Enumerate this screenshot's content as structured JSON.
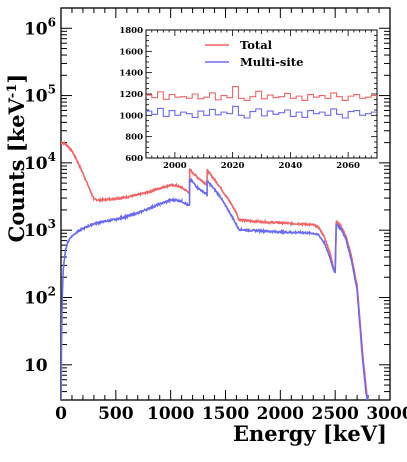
{
  "chart_data": {
    "main": {
      "type": "line",
      "xlabel": "Energy [keV]",
      "ylabel": "Counts [keV",
      "ylabel_sup": "-1",
      "ylabel_close": "]",
      "xlim": [
        0,
        3000
      ],
      "ylim": [
        3,
        2000000
      ],
      "yscale": "log",
      "x_ticks": [
        "0",
        "500",
        "1000",
        "1500",
        "2000",
        "2500",
        "3000"
      ],
      "y_ticks": [
        {
          "value": 10,
          "base": "10",
          "exp": ""
        },
        {
          "value": 100,
          "base": "10",
          "exp": "2"
        },
        {
          "value": 1000,
          "base": "10",
          "exp": "3"
        },
        {
          "value": 10000,
          "base": "10",
          "exp": "4"
        },
        {
          "value": 100000,
          "base": "10",
          "exp": "5"
        },
        {
          "value": 1000000,
          "base": "10",
          "exp": "6"
        }
      ],
      "series": [
        {
          "name": "Total",
          "color": "#f06466",
          "x": [
            0,
            30,
            60,
            100,
            150,
            200,
            250,
            300,
            350,
            400,
            500,
            600,
            700,
            800,
            900,
            1000,
            1050,
            1100,
            1150,
            1160,
            1172,
            1173,
            1200,
            1250,
            1300,
            1330,
            1332,
            1333,
            1380,
            1450,
            1500,
            1550,
            1600,
            1620,
            1700,
            1800,
            1900,
            2000,
            2100,
            2200,
            2300,
            2350,
            2400,
            2450,
            2480,
            2500,
            2510,
            2530,
            2560,
            2600,
            2650,
            2700,
            2720,
            2750,
            2780,
            2790,
            2800
          ],
          "y": [
            20000,
            19500,
            18000,
            15000,
            10500,
            7000,
            4500,
            2900,
            2800,
            2850,
            2950,
            3100,
            3350,
            3700,
            4200,
            4700,
            4600,
            4300,
            3800,
            3700,
            3600,
            8000,
            7200,
            6000,
            5200,
            4800,
            4500,
            7800,
            6200,
            4400,
            3300,
            2500,
            1800,
            1450,
            1380,
            1340,
            1310,
            1290,
            1260,
            1240,
            1200,
            1100,
            800,
            480,
            300,
            250,
            1350,
            1250,
            1100,
            800,
            400,
            150,
            60,
            15,
            5,
            3.5,
            3
          ]
        },
        {
          "name": "Multi-site",
          "color": "#6a6af2",
          "x": [
            0,
            5,
            10,
            20,
            40,
            60,
            80,
            100,
            150,
            200,
            250,
            300,
            350,
            400,
            500,
            600,
            700,
            800,
            900,
            1000,
            1050,
            1100,
            1150,
            1160,
            1172,
            1173,
            1200,
            1250,
            1300,
            1330,
            1332,
            1333,
            1380,
            1450,
            1500,
            1550,
            1600,
            1620,
            1700,
            1800,
            1900,
            2000,
            2100,
            2200,
            2300,
            2350,
            2400,
            2450,
            2480,
            2500,
            2510,
            2530,
            2560,
            2600,
            2650,
            2700,
            2720,
            2750,
            2780,
            2790,
            2800
          ],
          "y": [
            3,
            20,
            80,
            250,
            500,
            650,
            750,
            820,
            950,
            1050,
            1150,
            1250,
            1300,
            1350,
            1450,
            1600,
            1800,
            2100,
            2450,
            2800,
            2800,
            2700,
            2400,
            2350,
            2300,
            5800,
            5200,
            4200,
            3700,
            3400,
            3200,
            5400,
            4400,
            3200,
            2300,
            1700,
            1200,
            1030,
            1000,
            980,
            960,
            940,
            930,
            920,
            900,
            850,
            650,
            400,
            280,
            230,
            1250,
            1150,
            1000,
            720,
            350,
            130,
            50,
            12,
            4,
            3.2,
            3
          ]
        }
      ]
    },
    "inset": {
      "type": "line",
      "xlim": [
        1990,
        2070
      ],
      "ylim": [
        600,
        1800
      ],
      "x_ticks": [
        "2000",
        "2020",
        "2040",
        "2060"
      ],
      "y_ticks": [
        "600",
        "800",
        "1000",
        "1200",
        "1400",
        "1600",
        "1800"
      ],
      "legend": {
        "position": "top-right",
        "entries": [
          "Total",
          "Multi-site"
        ]
      },
      "series": [
        {
          "name": "Total",
          "color": "#f06466",
          "bin_start": 1990,
          "bin_width": 2,
          "values": [
            1190,
            1165,
            1220,
            1150,
            1195,
            1170,
            1175,
            1160,
            1200,
            1155,
            1170,
            1210,
            1145,
            1185,
            1165,
            1270,
            1160,
            1140,
            1175,
            1225,
            1155,
            1190,
            1165,
            1175,
            1205,
            1160,
            1180,
            1140,
            1195,
            1170,
            1185,
            1160,
            1210,
            1175,
            1140,
            1180,
            1195,
            1160,
            1170,
            1185
          ]
        },
        {
          "name": "Multi-site",
          "color": "#6a6af2",
          "bin_start": 1990,
          "bin_width": 2,
          "values": [
            1040,
            1010,
            1065,
            990,
            1045,
            1000,
            1030,
            1015,
            980,
            1040,
            1000,
            1055,
            1005,
            1030,
            1015,
            1085,
            1000,
            975,
            1035,
            1060,
            995,
            1040,
            1010,
            1025,
            1050,
            990,
            1030,
            980,
            1045,
            1015,
            1030,
            1000,
            1060,
            1010,
            975,
            1035,
            1045,
            1000,
            1015,
            1030
          ]
        }
      ]
    }
  }
}
